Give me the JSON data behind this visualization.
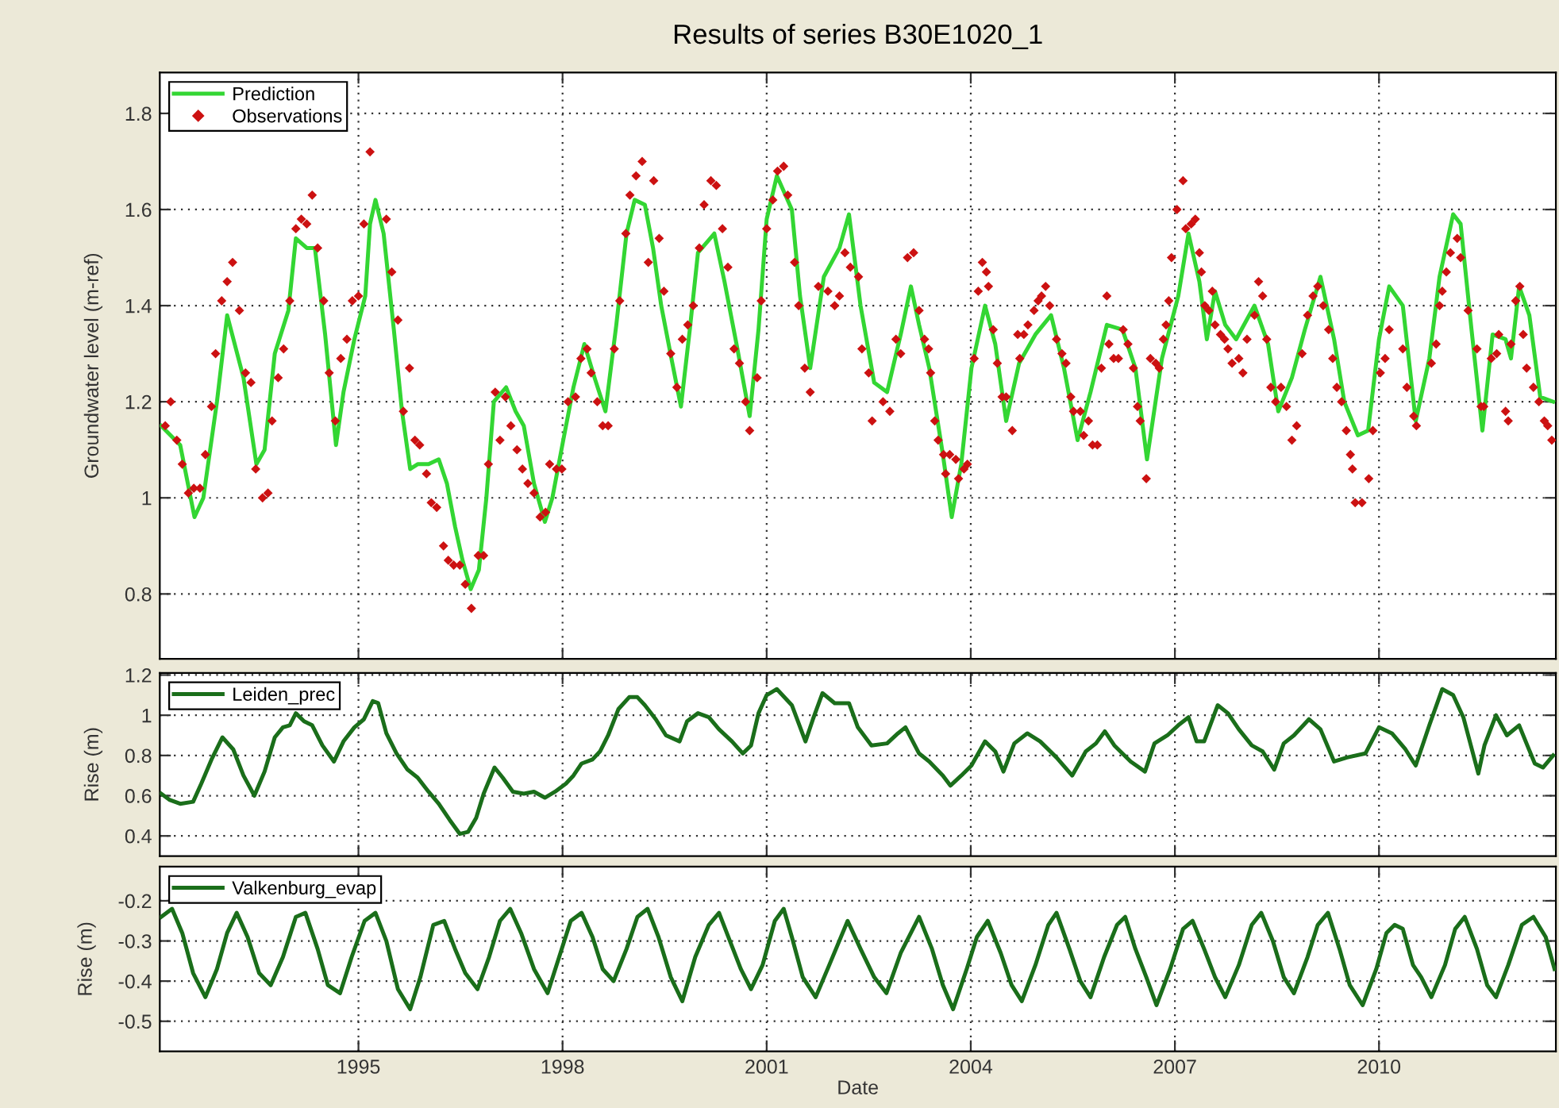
{
  "chart_data": [
    {
      "type": "line",
      "title": "Results of series B30E1020_1",
      "ylabel": "Groundwater level (m-ref)",
      "xlim": [
        1992.08,
        2012.6
      ],
      "xticks": [
        1995,
        1998,
        2001,
        2004,
        2007,
        2010
      ],
      "ylim": [
        0.665,
        1.885
      ],
      "yticks": [
        0.8,
        1,
        1.2,
        1.4,
        1.6,
        1.8
      ],
      "grid": true,
      "legend": "top left",
      "tick_labels": "y",
      "series": [
        {
          "name": "Prediction",
          "color": "#33d633",
          "line_style": "solid",
          "x": [
            1992.1,
            1992.38,
            1992.59,
            1992.72,
            1992.92,
            1993.07,
            1993.31,
            1993.5,
            1993.62,
            1993.77,
            1993.97,
            1994.08,
            1994.24,
            1994.36,
            1994.51,
            1994.67,
            1994.78,
            1994.94,
            1995.1,
            1995.17,
            1995.25,
            1995.37,
            1995.52,
            1995.64,
            1995.76,
            1995.87,
            1996.03,
            1996.18,
            1996.3,
            1996.42,
            1996.53,
            1996.65,
            1996.77,
            1996.88,
            1996.99,
            1997.17,
            1997.31,
            1997.43,
            1997.58,
            1997.74,
            1997.85,
            1998.01,
            1998.16,
            1998.32,
            1998.47,
            1998.63,
            1998.79,
            1998.94,
            1999.06,
            1999.21,
            1999.33,
            1999.45,
            1999.6,
            1999.74,
            1999.87,
            1999.99,
            2000.23,
            2000.38,
            2000.57,
            2000.75,
            2000.88,
            2001.0,
            2001.15,
            2001.37,
            2001.49,
            2001.64,
            2001.84,
            2002.07,
            2002.21,
            2002.38,
            2002.58,
            2002.77,
            2002.97,
            2003.12,
            2003.24,
            2003.39,
            2003.59,
            2003.72,
            2003.86,
            2004.01,
            2004.21,
            2004.36,
            2004.52,
            2004.71,
            2004.95,
            2005.18,
            2005.37,
            2005.57,
            2005.76,
            2006.0,
            2006.23,
            2006.42,
            2006.59,
            2006.81,
            2007.05,
            2007.2,
            2007.36,
            2007.47,
            2007.59,
            2007.74,
            2007.9,
            2008.17,
            2008.37,
            2008.52,
            2008.72,
            2008.91,
            2009.14,
            2009.34,
            2009.49,
            2009.69,
            2009.84,
            2010.0,
            2010.15,
            2010.35,
            2010.54,
            2010.74,
            2010.89,
            2011.09,
            2011.2,
            2011.36,
            2011.52,
            2011.67,
            2011.86,
            2011.94,
            2012.06,
            2012.21,
            2012.37,
            2012.56
          ],
          "values": [
            1.15,
            1.11,
            0.96,
            1.0,
            1.2,
            1.38,
            1.25,
            1.07,
            1.1,
            1.3,
            1.39,
            1.54,
            1.52,
            1.52,
            1.34,
            1.11,
            1.22,
            1.33,
            1.42,
            1.57,
            1.62,
            1.55,
            1.35,
            1.18,
            1.06,
            1.07,
            1.07,
            1.08,
            1.03,
            0.94,
            0.87,
            0.81,
            0.85,
            1.0,
            1.2,
            1.23,
            1.18,
            1.15,
            1.03,
            0.95,
            1.0,
            1.12,
            1.23,
            1.32,
            1.25,
            1.18,
            1.36,
            1.55,
            1.62,
            1.61,
            1.52,
            1.4,
            1.29,
            1.19,
            1.35,
            1.51,
            1.55,
            1.45,
            1.31,
            1.17,
            1.35,
            1.58,
            1.67,
            1.6,
            1.42,
            1.27,
            1.46,
            1.52,
            1.59,
            1.4,
            1.24,
            1.22,
            1.34,
            1.44,
            1.36,
            1.27,
            1.09,
            0.96,
            1.07,
            1.27,
            1.4,
            1.32,
            1.16,
            1.28,
            1.34,
            1.38,
            1.27,
            1.12,
            1.22,
            1.36,
            1.35,
            1.27,
            1.08,
            1.29,
            1.42,
            1.55,
            1.45,
            1.33,
            1.43,
            1.36,
            1.33,
            1.4,
            1.32,
            1.18,
            1.25,
            1.35,
            1.46,
            1.33,
            1.2,
            1.13,
            1.14,
            1.33,
            1.44,
            1.4,
            1.16,
            1.29,
            1.46,
            1.59,
            1.57,
            1.35,
            1.14,
            1.34,
            1.33,
            1.29,
            1.44,
            1.38,
            1.21,
            1.2
          ]
        },
        {
          "name": "Observations",
          "type": "scatter",
          "color": "#cc1111",
          "marker": "diamond",
          "x": [
            1992.16,
            1992.24,
            1992.33,
            1992.41,
            1992.5,
            1992.58,
            1992.67,
            1992.75,
            1992.84,
            1992.9,
            1992.99,
            1993.07,
            1993.15,
            1993.25,
            1993.34,
            1993.42,
            1993.49,
            1993.59,
            1993.67,
            1993.73,
            1993.82,
            1993.9,
            1993.99,
            1994.08,
            1994.16,
            1994.24,
            1994.32,
            1994.4,
            1994.49,
            1994.57,
            1994.66,
            1994.74,
            1994.83,
            1994.91,
            1995.0,
            1995.08,
            1995.17,
            1995.41,
            1995.49,
            1995.58,
            1995.66,
            1995.75,
            1995.83,
            1995.9,
            1996.0,
            1996.07,
            1996.15,
            1996.25,
            1996.32,
            1996.4,
            1996.49,
            1996.57,
            1996.66,
            1996.76,
            1996.84,
            1996.91,
            1997.01,
            1997.08,
            1997.16,
            1997.24,
            1997.33,
            1997.41,
            1997.49,
            1997.58,
            1997.67,
            1997.75,
            1997.81,
            1997.91,
            1997.99,
            1998.08,
            1998.19,
            1998.27,
            1998.36,
            1998.42,
            1998.51,
            1998.59,
            1998.67,
            1998.76,
            1998.84,
            1998.93,
            1998.99,
            1999.08,
            1999.17,
            1999.26,
            1999.34,
            1999.42,
            1999.49,
            1999.59,
            1999.68,
            1999.76,
            1999.84,
            1999.92,
            2000.01,
            2000.08,
            2000.18,
            2000.26,
            2000.35,
            2000.43,
            2000.52,
            2000.6,
            2000.69,
            2000.75,
            2000.86,
            2000.92,
            2001.0,
            2001.09,
            2001.16,
            2001.25,
            2001.31,
            2001.41,
            2001.47,
            2001.56,
            2001.64,
            2001.76,
            2001.9,
            2002.0,
            2002.07,
            2002.15,
            2002.23,
            2002.35,
            2002.4,
            2002.5,
            2002.55,
            2002.71,
            2002.81,
            2002.9,
            2002.97,
            2003.07,
            2003.16,
            2003.24,
            2003.32,
            2003.38,
            2003.41,
            2003.47,
            2003.52,
            2003.6,
            2003.63,
            2003.69,
            2003.78,
            2003.82,
            2003.9,
            2003.95,
            2004.05,
            2004.11,
            2004.17,
            2004.23,
            2004.26,
            2004.33,
            2004.39,
            2004.46,
            2004.52,
            2004.61,
            2004.69,
            2004.72,
            2004.78,
            2004.84,
            2004.93,
            2004.99,
            2005.04,
            2005.1,
            2005.16,
            2005.26,
            2005.34,
            2005.4,
            2005.47,
            2005.51,
            2005.61,
            2005.66,
            2005.73,
            2005.79,
            2005.86,
            2005.92,
            2006.0,
            2006.03,
            2006.1,
            2006.17,
            2006.24,
            2006.31,
            2006.39,
            2006.45,
            2006.49,
            2006.58,
            2006.64,
            2006.72,
            2006.77,
            2006.83,
            2006.87,
            2006.91,
            2006.95,
            2007.03,
            2007.12,
            2007.16,
            2007.24,
            2007.3,
            2007.36,
            2007.39,
            2007.44,
            2007.5,
            2007.55,
            2007.59,
            2007.67,
            2007.73,
            2007.78,
            2007.84,
            2007.94,
            2008.0,
            2008.06,
            2008.17,
            2008.23,
            2008.29,
            2008.35,
            2008.41,
            2008.48,
            2008.56,
            2008.64,
            2008.72,
            2008.79,
            2008.87,
            2008.95,
            2009.03,
            2009.1,
            2009.18,
            2009.26,
            2009.32,
            2009.38,
            2009.45,
            2009.52,
            2009.58,
            2009.61,
            2009.65,
            2009.75,
            2009.85,
            2009.91,
            2010.02,
            2010.09,
            2010.15,
            2010.35,
            2010.41,
            2010.51,
            2010.55,
            2010.77,
            2010.84,
            2010.89,
            2010.93,
            2010.99,
            2011.05,
            2011.15,
            2011.2,
            2011.31,
            2011.44,
            2011.5,
            2011.54,
            2011.65,
            2011.73,
            2011.76,
            2011.86,
            2011.9,
            2011.94,
            2012.01,
            2012.07,
            2012.12,
            2012.17,
            2012.27,
            2012.35,
            2012.43,
            2012.48,
            2012.54
          ],
          "values": [
            1.15,
            1.2,
            1.12,
            1.07,
            1.01,
            1.02,
            1.02,
            1.09,
            1.19,
            1.3,
            1.41,
            1.45,
            1.49,
            1.39,
            1.26,
            1.24,
            1.06,
            1.0,
            1.01,
            1.16,
            1.25,
            1.31,
            1.41,
            1.56,
            1.58,
            1.57,
            1.63,
            1.52,
            1.41,
            1.26,
            1.16,
            1.29,
            1.33,
            1.41,
            1.42,
            1.57,
            1.72,
            1.58,
            1.47,
            1.37,
            1.18,
            1.27,
            1.12,
            1.11,
            1.05,
            0.99,
            0.98,
            0.9,
            0.87,
            0.86,
            0.86,
            0.82,
            0.77,
            0.88,
            0.88,
            1.07,
            1.22,
            1.12,
            1.21,
            1.15,
            1.1,
            1.06,
            1.03,
            1.01,
            0.96,
            0.97,
            1.07,
            1.06,
            1.06,
            1.2,
            1.21,
            1.29,
            1.31,
            1.26,
            1.2,
            1.15,
            1.15,
            1.31,
            1.41,
            1.55,
            1.63,
            1.67,
            1.7,
            1.49,
            1.66,
            1.54,
            1.43,
            1.3,
            1.23,
            1.33,
            1.36,
            1.4,
            1.52,
            1.61,
            1.66,
            1.65,
            1.56,
            1.48,
            1.31,
            1.28,
            1.2,
            1.14,
            1.25,
            1.41,
            1.56,
            1.62,
            1.68,
            1.69,
            1.63,
            1.49,
            1.4,
            1.27,
            1.22,
            1.44,
            1.43,
            1.4,
            1.42,
            1.51,
            1.48,
            1.46,
            1.31,
            1.26,
            1.16,
            1.2,
            1.18,
            1.33,
            1.3,
            1.5,
            1.51,
            1.39,
            1.33,
            1.31,
            1.26,
            1.16,
            1.12,
            1.09,
            1.05,
            1.09,
            1.08,
            1.04,
            1.06,
            1.07,
            1.29,
            1.43,
            1.49,
            1.47,
            1.44,
            1.35,
            1.28,
            1.21,
            1.21,
            1.14,
            1.34,
            1.29,
            1.34,
            1.36,
            1.39,
            1.41,
            1.42,
            1.44,
            1.4,
            1.33,
            1.3,
            1.28,
            1.21,
            1.18,
            1.18,
            1.13,
            1.16,
            1.11,
            1.11,
            1.27,
            1.42,
            1.32,
            1.29,
            1.29,
            1.35,
            1.32,
            1.27,
            1.19,
            1.16,
            1.04,
            1.29,
            1.28,
            1.27,
            1.33,
            1.36,
            1.41,
            1.5,
            1.6,
            1.66,
            1.56,
            1.57,
            1.58,
            1.51,
            1.47,
            1.4,
            1.39,
            1.43,
            1.36,
            1.34,
            1.33,
            1.31,
            1.28,
            1.29,
            1.26,
            1.33,
            1.38,
            1.45,
            1.42,
            1.33,
            1.23,
            1.2,
            1.23,
            1.19,
            1.12,
            1.15,
            1.3,
            1.38,
            1.42,
            1.44,
            1.4,
            1.35,
            1.29,
            1.23,
            1.2,
            1.14,
            1.09,
            1.06,
            0.99,
            0.99,
            1.04,
            1.14,
            1.26,
            1.29,
            1.35,
            1.31,
            1.23,
            1.17,
            1.15,
            1.28,
            1.32,
            1.4,
            1.43,
            1.47,
            1.51,
            1.54,
            1.5,
            1.39,
            1.31,
            1.19,
            1.19,
            1.29,
            1.3,
            1.34,
            1.18,
            1.16,
            1.32,
            1.41,
            1.44,
            1.34,
            1.27,
            1.23,
            1.2,
            1.16,
            1.15,
            1.12
          ]
        }
      ]
    },
    {
      "type": "line",
      "ylabel": "Rise (m)",
      "xlim": [
        1992.08,
        2012.6
      ],
      "xticks": [
        1995,
        1998,
        2001,
        2004,
        2007,
        2010
      ],
      "ylim": [
        0.3,
        1.21
      ],
      "yticks": [
        0.4,
        0.6,
        0.8,
        1,
        1.2
      ],
      "grid": true,
      "legend": "top left",
      "tick_labels": "y",
      "series": [
        {
          "name": "Leiden_prec",
          "color": "#1a6e1a",
          "line_style": "solid",
          "x": [
            1992.1,
            1992.22,
            1992.38,
            1992.57,
            1992.69,
            1992.84,
            1993.0,
            1993.16,
            1993.31,
            1993.47,
            1993.62,
            1993.77,
            1993.89,
            1993.99,
            1994.08,
            1994.2,
            1994.32,
            1994.47,
            1994.64,
            1994.78,
            1994.94,
            1995.08,
            1995.21,
            1995.29,
            1995.41,
            1995.56,
            1995.72,
            1995.87,
            1996.03,
            1996.18,
            1996.34,
            1996.49,
            1996.61,
            1996.73,
            1996.84,
            1997.0,
            1997.12,
            1997.27,
            1997.43,
            1997.58,
            1997.74,
            1997.89,
            1998.05,
            1998.16,
            1998.28,
            1998.44,
            1998.55,
            1998.67,
            1998.82,
            1998.98,
            1999.1,
            1999.21,
            1999.37,
            1999.52,
            1999.72,
            1999.83,
            1999.99,
            2000.15,
            2000.3,
            2000.49,
            2000.65,
            2000.77,
            2000.88,
            2001.0,
            2001.15,
            2001.37,
            2001.57,
            2001.68,
            2001.82,
            2002.0,
            2002.21,
            2002.34,
            2002.54,
            2002.77,
            2002.93,
            2003.04,
            2003.24,
            2003.39,
            2003.59,
            2003.7,
            2003.86,
            2004.01,
            2004.21,
            2004.36,
            2004.48,
            2004.64,
            2004.83,
            2005.02,
            2005.26,
            2005.49,
            2005.69,
            2005.84,
            2005.97,
            2006.11,
            2006.35,
            2006.56,
            2006.7,
            2006.89,
            2007.05,
            2007.2,
            2007.32,
            2007.43,
            2007.63,
            2007.78,
            2007.94,
            2008.13,
            2008.29,
            2008.46,
            2008.6,
            2008.75,
            2008.97,
            2009.14,
            2009.34,
            2009.53,
            2009.8,
            2010.0,
            2010.19,
            2010.39,
            2010.54,
            2010.74,
            2010.93,
            2011.09,
            2011.24,
            2011.46,
            2011.55,
            2011.72,
            2011.88,
            2012.06,
            2012.18,
            2012.29,
            2012.41,
            2012.56
          ],
          "values": [
            0.61,
            0.58,
            0.56,
            0.57,
            0.66,
            0.78,
            0.89,
            0.83,
            0.7,
            0.6,
            0.72,
            0.89,
            0.94,
            0.95,
            1.01,
            0.97,
            0.95,
            0.85,
            0.77,
            0.87,
            0.94,
            0.98,
            1.07,
            1.06,
            0.91,
            0.81,
            0.73,
            0.69,
            0.62,
            0.56,
            0.48,
            0.41,
            0.42,
            0.49,
            0.61,
            0.74,
            0.69,
            0.62,
            0.61,
            0.62,
            0.59,
            0.62,
            0.66,
            0.7,
            0.76,
            0.78,
            0.82,
            0.9,
            1.03,
            1.09,
            1.09,
            1.05,
            0.98,
            0.9,
            0.87,
            0.97,
            1.01,
            0.99,
            0.93,
            0.87,
            0.81,
            0.85,
            1.01,
            1.1,
            1.13,
            1.05,
            0.87,
            0.98,
            1.11,
            1.06,
            1.06,
            0.94,
            0.85,
            0.86,
            0.91,
            0.94,
            0.81,
            0.77,
            0.7,
            0.65,
            0.7,
            0.75,
            0.87,
            0.82,
            0.72,
            0.86,
            0.91,
            0.87,
            0.79,
            0.7,
            0.82,
            0.86,
            0.92,
            0.85,
            0.77,
            0.72,
            0.86,
            0.9,
            0.95,
            0.99,
            0.87,
            0.87,
            1.05,
            1.01,
            0.93,
            0.85,
            0.82,
            0.73,
            0.86,
            0.9,
            0.98,
            0.93,
            0.77,
            0.79,
            0.81,
            0.94,
            0.91,
            0.83,
            0.75,
            0.95,
            1.13,
            1.1,
            0.99,
            0.71,
            0.85,
            1.0,
            0.9,
            0.95,
            0.85,
            0.76,
            0.74,
            0.8
          ]
        }
      ]
    },
    {
      "type": "line",
      "xlabel": "Date",
      "ylabel": "Rise (m)",
      "xlim": [
        1992.08,
        2012.6
      ],
      "xticks": [
        1995,
        1998,
        2001,
        2004,
        2007,
        2010
      ],
      "ylim": [
        -0.575,
        -0.115
      ],
      "yticks": [
        -0.5,
        -0.4,
        -0.3,
        -0.2
      ],
      "grid": true,
      "legend": "top left",
      "series": [
        {
          "name": "Valkenburg_evap",
          "color": "#1a6e1a",
          "line_style": "solid",
          "x": [
            1992.1,
            1992.26,
            1992.41,
            1992.57,
            1992.75,
            1992.92,
            1993.07,
            1993.21,
            1993.37,
            1993.54,
            1993.71,
            1993.89,
            1994.08,
            1994.22,
            1994.4,
            1994.55,
            1994.73,
            1994.9,
            1995.09,
            1995.25,
            1995.41,
            1995.58,
            1995.76,
            1995.91,
            1996.1,
            1996.26,
            1996.42,
            1996.57,
            1996.75,
            1996.92,
            1997.08,
            1997.23,
            1997.39,
            1997.58,
            1997.78,
            1997.95,
            1998.12,
            1998.28,
            1998.44,
            1998.59,
            1998.75,
            1998.94,
            1999.1,
            1999.25,
            1999.41,
            1999.59,
            1999.76,
            1999.95,
            2000.15,
            2000.3,
            2000.46,
            2000.62,
            2000.77,
            2000.94,
            2001.12,
            2001.25,
            2001.37,
            2001.53,
            2001.72,
            2001.92,
            2002.19,
            2002.38,
            2002.58,
            2002.76,
            2002.97,
            2003.24,
            2003.43,
            2003.59,
            2003.74,
            2003.94,
            2004.09,
            2004.25,
            2004.44,
            2004.6,
            2004.75,
            2004.95,
            2005.14,
            2005.26,
            2005.45,
            2005.61,
            2005.76,
            2005.96,
            2006.15,
            2006.27,
            2006.42,
            2006.58,
            2006.73,
            2006.93,
            2007.12,
            2007.26,
            2007.43,
            2007.59,
            2007.74,
            2007.94,
            2008.13,
            2008.27,
            2008.44,
            2008.6,
            2008.75,
            2008.95,
            2009.1,
            2009.25,
            2009.42,
            2009.57,
            2009.76,
            2009.96,
            2010.11,
            2010.23,
            2010.35,
            2010.5,
            2010.62,
            2010.77,
            2010.97,
            2011.12,
            2011.26,
            2011.44,
            2011.59,
            2011.72,
            2011.9,
            2012.1,
            2012.27,
            2012.45,
            2012.58
          ],
          "values": [
            -0.24,
            -0.22,
            -0.28,
            -0.38,
            -0.44,
            -0.37,
            -0.28,
            -0.23,
            -0.29,
            -0.38,
            -0.41,
            -0.34,
            -0.24,
            -0.23,
            -0.32,
            -0.41,
            -0.43,
            -0.34,
            -0.25,
            -0.23,
            -0.3,
            -0.42,
            -0.47,
            -0.39,
            -0.26,
            -0.25,
            -0.32,
            -0.38,
            -0.42,
            -0.34,
            -0.25,
            -0.22,
            -0.28,
            -0.37,
            -0.43,
            -0.34,
            -0.25,
            -0.23,
            -0.29,
            -0.37,
            -0.4,
            -0.32,
            -0.24,
            -0.22,
            -0.29,
            -0.39,
            -0.45,
            -0.34,
            -0.26,
            -0.23,
            -0.3,
            -0.37,
            -0.42,
            -0.36,
            -0.25,
            -0.22,
            -0.29,
            -0.39,
            -0.44,
            -0.36,
            -0.25,
            -0.32,
            -0.39,
            -0.43,
            -0.33,
            -0.24,
            -0.32,
            -0.41,
            -0.47,
            -0.37,
            -0.29,
            -0.25,
            -0.33,
            -0.41,
            -0.45,
            -0.36,
            -0.26,
            -0.23,
            -0.32,
            -0.4,
            -0.44,
            -0.34,
            -0.26,
            -0.24,
            -0.32,
            -0.39,
            -0.46,
            -0.37,
            -0.27,
            -0.25,
            -0.32,
            -0.39,
            -0.44,
            -0.36,
            -0.26,
            -0.23,
            -0.3,
            -0.39,
            -0.43,
            -0.34,
            -0.26,
            -0.23,
            -0.32,
            -0.41,
            -0.46,
            -0.37,
            -0.28,
            -0.26,
            -0.27,
            -0.36,
            -0.39,
            -0.44,
            -0.36,
            -0.27,
            -0.24,
            -0.32,
            -0.41,
            -0.44,
            -0.36,
            -0.26,
            -0.24,
            -0.29,
            -0.37
          ]
        }
      ]
    }
  ]
}
